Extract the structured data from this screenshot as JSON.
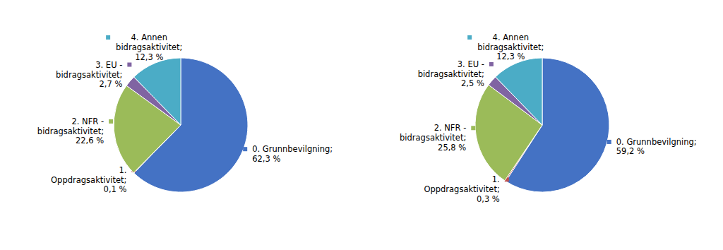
{
  "chart_data": [
    {
      "type": "pie",
      "categories": [
        "0. Grunnbevilgning;",
        "1.\nOppdragsaktivitet;",
        "2. NFR -\nbidragsaktivitet;",
        "3. EU -\nbidragsaktivitet;",
        "4. Annen\nbidragsaktivitet;"
      ],
      "values": [
        62.3,
        0.1,
        22.6,
        2.7,
        12.3
      ],
      "value_labels": [
        "62,3 %",
        "0,1 %",
        "22,6 %",
        "2,7 %",
        "12,3 %"
      ],
      "colors": [
        "#4472C4",
        "#C0504D",
        "#9BBB59",
        "#8064A2",
        "#4BACC6"
      ],
      "data_labels": true
    },
    {
      "type": "pie",
      "categories": [
        "0. Grunnbevilgning;",
        "1.\nOppdragsaktivitet;",
        "2. NFR -\nbidragsaktivitet;",
        "3. EU -\nbidragsaktivitet;",
        "4. Annen\nbidragsaktivitet;"
      ],
      "values": [
        59.2,
        0.3,
        25.8,
        2.5,
        12.3
      ],
      "value_labels": [
        "59,2 %",
        "0,3 %",
        "25,8 %",
        "2,5 %",
        "12,3 %"
      ],
      "colors": [
        "#4472C4",
        "#C0504D",
        "#9BBB59",
        "#8064A2",
        "#4BACC6"
      ],
      "data_labels": true
    }
  ]
}
